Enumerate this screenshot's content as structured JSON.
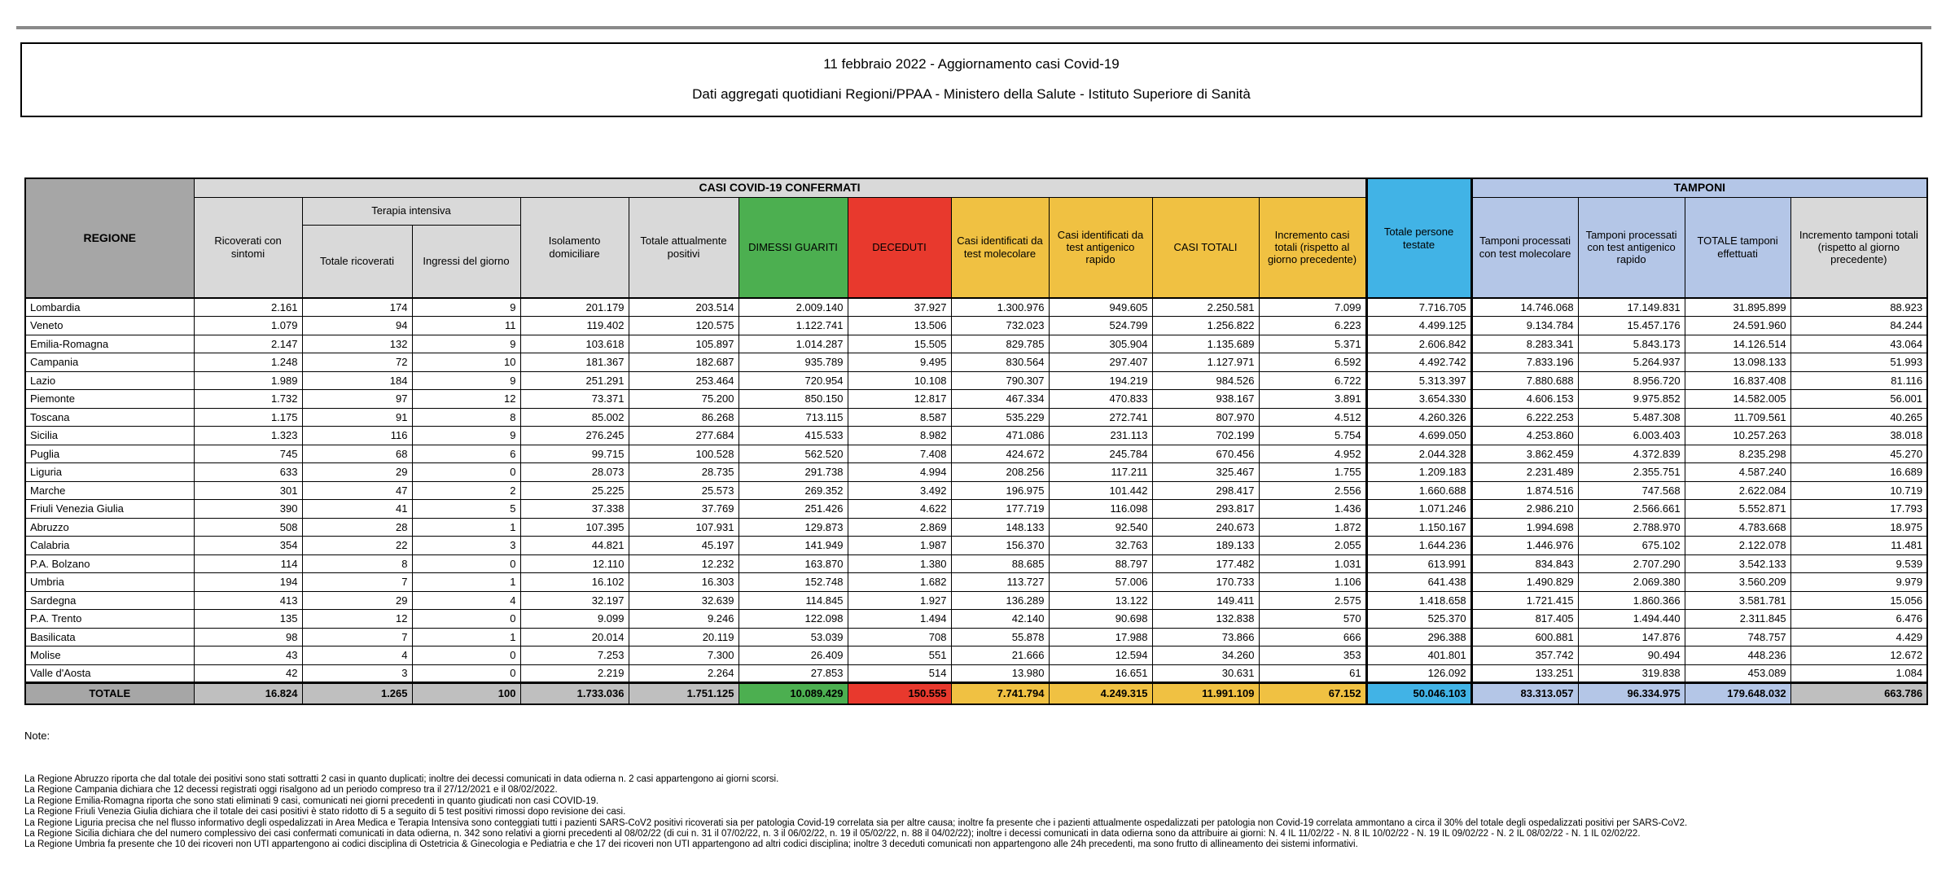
{
  "title": {
    "line1": "11 febbraio 2022 - Aggiornamento casi Covid-19",
    "line2": "Dati aggregati quotidiani Regioni/PPAA - Ministero della Salute - Istituto Superiore di Sanità"
  },
  "colors": {
    "dgray": "#a6a6a6",
    "lgray": "#d9d9d9",
    "mgray": "#bfbfbf",
    "green": "#4caf50",
    "red": "#e8392d",
    "orange": "#f0c142",
    "blue": "#41b3e6",
    "peri": "#b4c6e7"
  },
  "table": {
    "headers": {
      "regione": "REGIONE",
      "casi_banner": "CASI COVID-19 CONFERMATI",
      "tamponi_banner": "TAMPONI",
      "terapia_intensiva": "Terapia intensiva",
      "ricoverati_sintomi": "Ricoverati con sintomi",
      "totale_ricoverati": "Totale ricoverati",
      "ingressi_giorno": "Ingressi del giorno",
      "isolamento": "Isolamento domiciliare",
      "attualmente_positivi": "Totale attualmente positivi",
      "dimessi": "DIMESSI GUARITI",
      "deceduti": "DECEDUTI",
      "casi_molecolare": "Casi identificati da test molecolare",
      "casi_antigenico": "Casi identificati da test antigenico rapido",
      "casi_totali": "CASI TOTALI",
      "incremento_casi": "Incremento casi totali (rispetto al giorno precedente)",
      "persone_testate": "Totale persone testate",
      "tamponi_molecolare": "Tamponi processati con test molecolare",
      "tamponi_antigenico": "Tamponi processati con test antigenico rapido",
      "totale_tamponi": "TOTALE tamponi effettuati",
      "incremento_tamponi": "Incremento tamponi totali (rispetto al giorno precedente)"
    },
    "rows": [
      [
        "Lombardia",
        "2.161",
        "174",
        "9",
        "201.179",
        "203.514",
        "2.009.140",
        "37.927",
        "1.300.976",
        "949.605",
        "2.250.581",
        "7.099",
        "7.716.705",
        "14.746.068",
        "17.149.831",
        "31.895.899",
        "88.923"
      ],
      [
        "Veneto",
        "1.079",
        "94",
        "11",
        "119.402",
        "120.575",
        "1.122.741",
        "13.506",
        "732.023",
        "524.799",
        "1.256.822",
        "6.223",
        "4.499.125",
        "9.134.784",
        "15.457.176",
        "24.591.960",
        "84.244"
      ],
      [
        "Emilia-Romagna",
        "2.147",
        "132",
        "9",
        "103.618",
        "105.897",
        "1.014.287",
        "15.505",
        "829.785",
        "305.904",
        "1.135.689",
        "5.371",
        "2.606.842",
        "8.283.341",
        "5.843.173",
        "14.126.514",
        "43.064"
      ],
      [
        "Campania",
        "1.248",
        "72",
        "10",
        "181.367",
        "182.687",
        "935.789",
        "9.495",
        "830.564",
        "297.407",
        "1.127.971",
        "6.592",
        "4.492.742",
        "7.833.196",
        "5.264.937",
        "13.098.133",
        "51.993"
      ],
      [
        "Lazio",
        "1.989",
        "184",
        "9",
        "251.291",
        "253.464",
        "720.954",
        "10.108",
        "790.307",
        "194.219",
        "984.526",
        "6.722",
        "5.313.397",
        "7.880.688",
        "8.956.720",
        "16.837.408",
        "81.116"
      ],
      [
        "Piemonte",
        "1.732",
        "97",
        "12",
        "73.371",
        "75.200",
        "850.150",
        "12.817",
        "467.334",
        "470.833",
        "938.167",
        "3.891",
        "3.654.330",
        "4.606.153",
        "9.975.852",
        "14.582.005",
        "56.001"
      ],
      [
        "Toscana",
        "1.175",
        "91",
        "8",
        "85.002",
        "86.268",
        "713.115",
        "8.587",
        "535.229",
        "272.741",
        "807.970",
        "4.512",
        "4.260.326",
        "6.222.253",
        "5.487.308",
        "11.709.561",
        "40.265"
      ],
      [
        "Sicilia",
        "1.323",
        "116",
        "9",
        "276.245",
        "277.684",
        "415.533",
        "8.982",
        "471.086",
        "231.113",
        "702.199",
        "5.754",
        "4.699.050",
        "4.253.860",
        "6.003.403",
        "10.257.263",
        "38.018"
      ],
      [
        "Puglia",
        "745",
        "68",
        "6",
        "99.715",
        "100.528",
        "562.520",
        "7.408",
        "424.672",
        "245.784",
        "670.456",
        "4.952",
        "2.044.328",
        "3.862.459",
        "4.372.839",
        "8.235.298",
        "45.270"
      ],
      [
        "Liguria",
        "633",
        "29",
        "0",
        "28.073",
        "28.735",
        "291.738",
        "4.994",
        "208.256",
        "117.211",
        "325.467",
        "1.755",
        "1.209.183",
        "2.231.489",
        "2.355.751",
        "4.587.240",
        "16.689"
      ],
      [
        "Marche",
        "301",
        "47",
        "2",
        "25.225",
        "25.573",
        "269.352",
        "3.492",
        "196.975",
        "101.442",
        "298.417",
        "2.556",
        "1.660.688",
        "1.874.516",
        "747.568",
        "2.622.084",
        "10.719"
      ],
      [
        "Friuli Venezia Giulia",
        "390",
        "41",
        "5",
        "37.338",
        "37.769",
        "251.426",
        "4.622",
        "177.719",
        "116.098",
        "293.817",
        "1.436",
        "1.071.246",
        "2.986.210",
        "2.566.661",
        "5.552.871",
        "17.793"
      ],
      [
        "Abruzzo",
        "508",
        "28",
        "1",
        "107.395",
        "107.931",
        "129.873",
        "2.869",
        "148.133",
        "92.540",
        "240.673",
        "1.872",
        "1.150.167",
        "1.994.698",
        "2.788.970",
        "4.783.668",
        "18.975"
      ],
      [
        "Calabria",
        "354",
        "22",
        "3",
        "44.821",
        "45.197",
        "141.949",
        "1.987",
        "156.370",
        "32.763",
        "189.133",
        "2.055",
        "1.644.236",
        "1.446.976",
        "675.102",
        "2.122.078",
        "11.481"
      ],
      [
        "P.A. Bolzano",
        "114",
        "8",
        "0",
        "12.110",
        "12.232",
        "163.870",
        "1.380",
        "88.685",
        "88.797",
        "177.482",
        "1.031",
        "613.991",
        "834.843",
        "2.707.290",
        "3.542.133",
        "9.539"
      ],
      [
        "Umbria",
        "194",
        "7",
        "1",
        "16.102",
        "16.303",
        "152.748",
        "1.682",
        "113.727",
        "57.006",
        "170.733",
        "1.106",
        "641.438",
        "1.490.829",
        "2.069.380",
        "3.560.209",
        "9.979"
      ],
      [
        "Sardegna",
        "413",
        "29",
        "4",
        "32.197",
        "32.639",
        "114.845",
        "1.927",
        "136.289",
        "13.122",
        "149.411",
        "2.575",
        "1.418.658",
        "1.721.415",
        "1.860.366",
        "3.581.781",
        "15.056"
      ],
      [
        "P.A. Trento",
        "135",
        "12",
        "0",
        "9.099",
        "9.246",
        "122.098",
        "1.494",
        "42.140",
        "90.698",
        "132.838",
        "570",
        "525.370",
        "817.405",
        "1.494.440",
        "2.311.845",
        "6.476"
      ],
      [
        "Basilicata",
        "98",
        "7",
        "1",
        "20.014",
        "20.119",
        "53.039",
        "708",
        "55.878",
        "17.988",
        "73.866",
        "666",
        "296.388",
        "600.881",
        "147.876",
        "748.757",
        "4.429"
      ],
      [
        "Molise",
        "43",
        "4",
        "0",
        "7.253",
        "7.300",
        "26.409",
        "551",
        "21.666",
        "12.594",
        "34.260",
        "353",
        "401.801",
        "357.742",
        "90.494",
        "448.236",
        "12.672"
      ],
      [
        "Valle d'Aosta",
        "42",
        "3",
        "0",
        "2.219",
        "2.264",
        "27.853",
        "514",
        "13.980",
        "16.651",
        "30.631",
        "61",
        "126.092",
        "133.251",
        "319.838",
        "453.089",
        "1.084"
      ]
    ],
    "total_row": [
      "TOTALE",
      "16.824",
      "1.265",
      "100",
      "1.733.036",
      "1.751.125",
      "10.089.429",
      "150.555",
      "7.741.794",
      "4.249.315",
      "11.991.109",
      "67.152",
      "50.046.103",
      "83.313.057",
      "96.334.975",
      "179.648.032",
      "663.786"
    ]
  },
  "notes": {
    "heading": "Note:",
    "items": [
      "La Regione Abruzzo  riporta che dal totale dei positivi sono stati sottratti 2 casi in quanto duplicati; inoltre dei decessi comunicati in data odierna n. 2 casi appartengono ai giorni scorsi.",
      "La Regione Campania dichiara che 12 decessi registrati oggi risalgono ad un periodo compreso tra il 27/12/2021 e il 08/02/2022.",
      "La Regione Emilia-Romagna  riporta che sono stati eliminati 9 casi, comunicati nei giorni precedenti in quanto giudicati non casi COVID-19.",
      "La Regione Friuli Venezia Giulia dichiara che il totale dei casi positivi è stato ridotto di 5 a seguito di 5 test positivi rimossi dopo revisione dei casi.",
      "La Regione Liguria precisa che nel flusso informativo degli ospedalizzati in Area Medica e Terapia Intensiva sono conteggiati tutti i pazienti SARS-CoV2 positivi ricoverati sia per patologia Covid-19 correlata sia per altre causa; inoltre fa presente che i pazienti attualmente ospedalizzati per patologia non Covid-19 correlata ammontano a circa il 30% del totale degli ospedalizzati positivi per SARS-CoV2.",
      "La Regione Sicilia dichiara che del numero complessivo dei casi confermati comunicati in data odierna, n. 342 sono relativi a giorni precedenti al 08/02/22 (di cui n. 31 il 07/02/22, n. 3 il 06/02/22, n. 19 il 05/02/22, n. 88 il 04/02/22); inoltre i decessi comunicati in data odierna sono da attribuire ai giorni: N. 4 IL 11/02/22 - N. 8 IL 10/02/22 - N. 19 IL 09/02/22 - N. 2 IL 08/02/22 - N. 1 IL 02/02/22.",
      "La Regione Umbria fa presente che 10 dei ricoveri non UTI appartengono ai codici disciplina di Ostetricia & Ginecologia e Pediatria e che  17 dei ricoveri non UTI appartengono ad altri codici disciplina; inoltre 3 deceduti comunicati non appartengono alle 24h precedenti, ma sono frutto di allineamento dei sistemi informativi."
    ]
  }
}
